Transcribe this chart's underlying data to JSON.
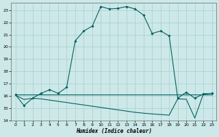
{
  "xlabel": "Humidex (Indice chaleur)",
  "bg_color": "#cce8e8",
  "grid_color": "#aacccc",
  "line_color": "#006060",
  "xlim": [
    -0.5,
    23.5
  ],
  "ylim": [
    14,
    23.6
  ],
  "yticks": [
    14,
    15,
    16,
    17,
    18,
    19,
    20,
    21,
    22,
    23
  ],
  "xticks": [
    0,
    1,
    2,
    3,
    4,
    5,
    6,
    7,
    8,
    9,
    10,
    11,
    12,
    13,
    14,
    15,
    16,
    17,
    18,
    19,
    20,
    21,
    22,
    23
  ],
  "curve1_x": [
    0,
    1,
    2,
    3,
    4,
    5,
    6,
    7,
    8,
    9,
    10,
    11,
    12,
    13,
    14,
    15,
    16,
    17,
    18,
    19,
    20,
    21,
    22,
    23
  ],
  "curve1_y": [
    16.1,
    15.2,
    15.8,
    16.2,
    16.5,
    16.2,
    16.7,
    20.5,
    21.3,
    21.7,
    23.3,
    23.1,
    23.15,
    23.3,
    23.1,
    22.6,
    21.1,
    21.3,
    20.9,
    15.8,
    16.3,
    15.8,
    16.15,
    16.2
  ],
  "curve2_x": [
    0,
    1,
    2,
    3,
    4,
    5,
    6,
    7,
    8,
    9,
    10,
    11,
    12,
    13,
    14,
    15,
    16,
    17,
    18,
    19,
    20,
    21,
    22,
    23
  ],
  "curve2_y": [
    16.05,
    15.7,
    15.8,
    15.75,
    15.65,
    15.55,
    15.45,
    15.35,
    15.25,
    15.15,
    15.05,
    14.95,
    14.85,
    14.75,
    14.65,
    14.58,
    14.52,
    14.47,
    14.42,
    15.75,
    15.72,
    14.18,
    16.15,
    16.2
  ],
  "curve3_x": [
    0,
    23
  ],
  "curve3_y": [
    16.1,
    16.1
  ]
}
